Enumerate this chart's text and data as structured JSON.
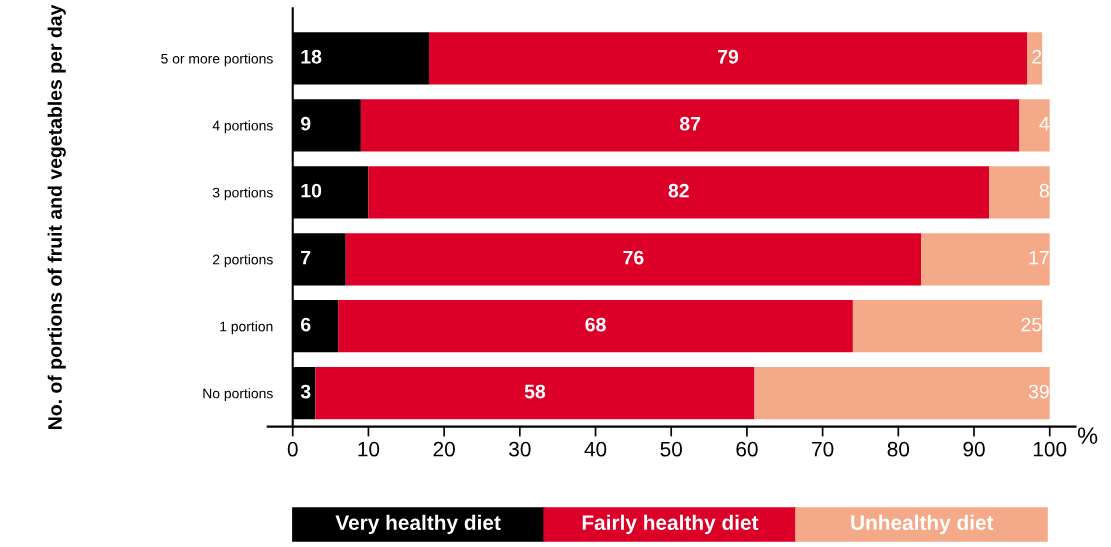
{
  "chart_data": {
    "type": "bar",
    "orientation": "horizontal",
    "stacked": true,
    "categories": [
      "5 or more portions",
      "4 portions",
      "3 portions",
      "2 portions",
      "1 portion",
      "No portions"
    ],
    "series": [
      {
        "name": "Very healthy diet",
        "color": "#000000",
        "values": [
          18,
          9,
          10,
          7,
          6,
          3
        ]
      },
      {
        "name": "Fairly healthy diet",
        "color": "#dc0028",
        "values": [
          79,
          87,
          82,
          76,
          68,
          58
        ]
      },
      {
        "name": "Unhealthy diet",
        "color": "#f4aa88",
        "values": [
          2,
          4,
          8,
          17,
          25,
          39
        ]
      }
    ],
    "xlabel": "%",
    "ylabel": "No. of portions of fruit and vegetables per day",
    "xlim": [
      -3.3,
      103.4
    ],
    "xticks": [
      0,
      10,
      20,
      30,
      40,
      50,
      60,
      70,
      80,
      90,
      100
    ],
    "data_labels": true,
    "legend": "bottom",
    "grid": false
  }
}
